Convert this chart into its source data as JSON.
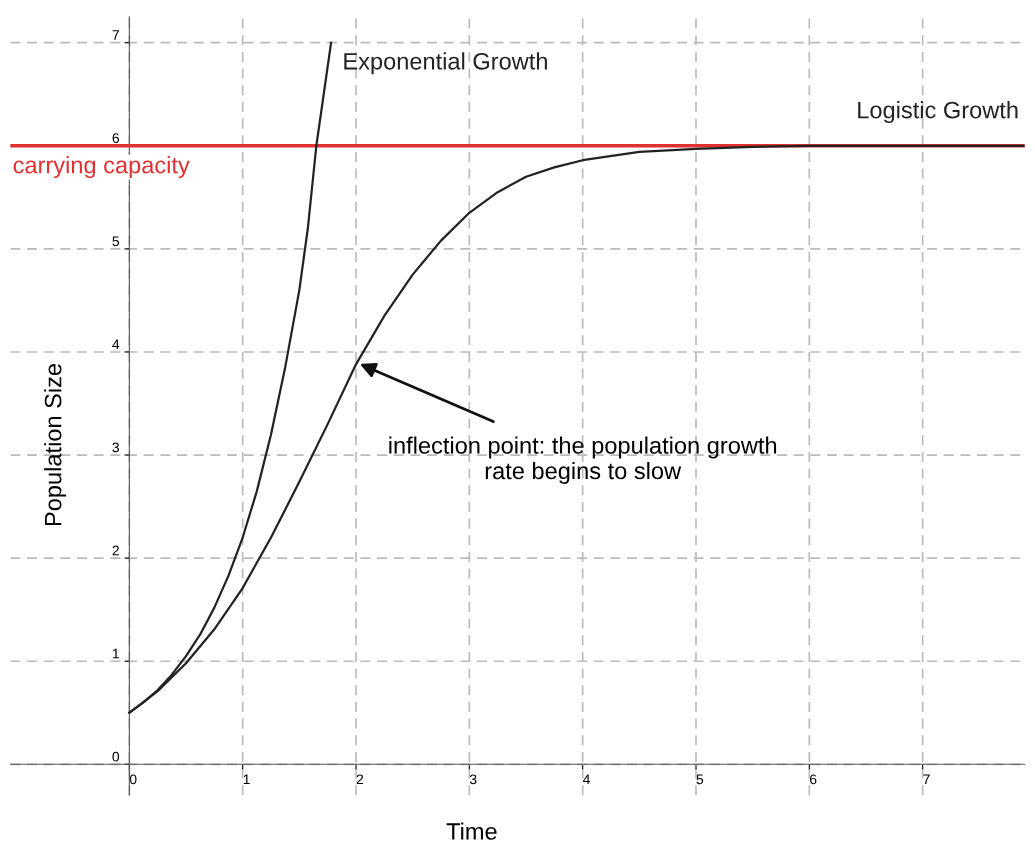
{
  "chart_data": {
    "type": "line",
    "xlabel": "Time",
    "ylabel": "Population Size",
    "xlim": [
      -1.05,
      7.9
    ],
    "ylim": [
      -0.3,
      7.25
    ],
    "xticks": [
      0,
      1,
      2,
      3,
      4,
      5,
      6,
      7
    ],
    "yticks": [
      0,
      1,
      2,
      3,
      4,
      5,
      6,
      7
    ],
    "grid": true,
    "line_style": "solid",
    "series": [
      {
        "name": "Exponential Growth",
        "color": "#222222",
        "x": [
          0,
          0.125,
          0.25,
          0.375,
          0.5,
          0.625,
          0.75,
          0.875,
          1,
          1.125,
          1.25,
          1.375,
          1.5,
          1.575,
          1.65,
          1.715,
          1.78
        ],
        "values": [
          0.5,
          0.6,
          0.72,
          0.87,
          1.05,
          1.26,
          1.52,
          1.83,
          2.2,
          2.65,
          3.2,
          3.85,
          4.6,
          5.2,
          6.0,
          6.5,
          7.0
        ]
      },
      {
        "name": "Logistic Growth",
        "color": "#222222",
        "x": [
          0,
          0.25,
          0.5,
          0.75,
          1,
          1.25,
          1.5,
          1.75,
          2,
          2.25,
          2.5,
          2.75,
          3,
          3.25,
          3.5,
          3.75,
          4,
          4.5,
          5,
          5.5,
          6,
          7,
          7.9
        ],
        "values": [
          0.5,
          0.71,
          0.98,
          1.31,
          1.71,
          2.2,
          2.74,
          3.3,
          3.88,
          4.35,
          4.75,
          5.08,
          5.35,
          5.55,
          5.7,
          5.79,
          5.86,
          5.94,
          5.97,
          5.99,
          6.0,
          6.0,
          6.0
        ]
      }
    ],
    "ref_lines": [
      {
        "axis": "y",
        "value": 6,
        "label": "carrying capacity",
        "color": "#e03030"
      }
    ],
    "annotations": [
      {
        "text": "inflection point: the population growth\nrate begins to slow",
        "x": 2,
        "y": 3.9
      }
    ]
  }
}
